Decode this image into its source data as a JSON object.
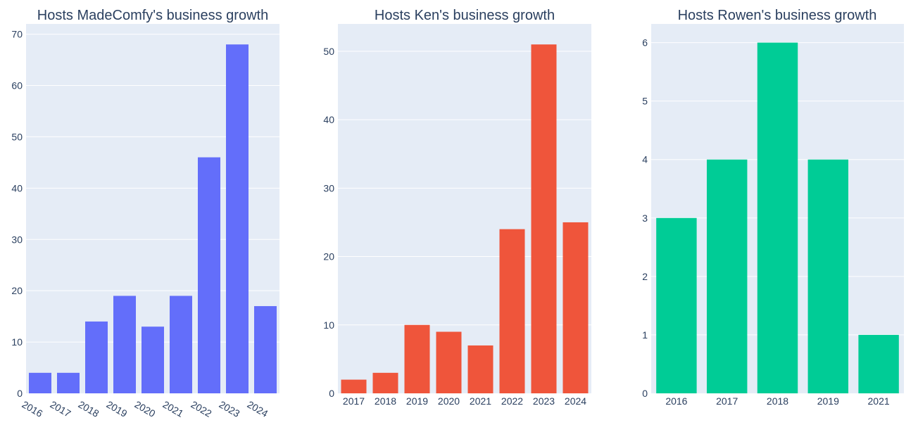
{
  "chart_data": [
    {
      "type": "bar",
      "title": "Hosts MadeComfy's business growth",
      "categories": [
        "2016",
        "2017",
        "2018",
        "2019",
        "2020",
        "2021",
        "2022",
        "2023",
        "2024"
      ],
      "values": [
        4,
        4,
        14,
        19,
        13,
        19,
        46,
        68,
        17
      ],
      "ylim": [
        0,
        72
      ],
      "yticks": [
        0,
        10,
        20,
        30,
        40,
        50,
        60,
        70
      ],
      "color": "#636efa",
      "rotate_xticks": true,
      "grid": true
    },
    {
      "type": "bar",
      "title": "Hosts Ken's business growth",
      "categories": [
        "2017",
        "2018",
        "2019",
        "2020",
        "2021",
        "2022",
        "2023",
        "2024"
      ],
      "values": [
        2,
        3,
        10,
        9,
        7,
        24,
        51,
        25
      ],
      "ylim": [
        0,
        54
      ],
      "yticks": [
        0,
        10,
        20,
        30,
        40,
        50
      ],
      "color": "#ef553b",
      "rotate_xticks": false,
      "grid": true
    },
    {
      "type": "bar",
      "title": "Hosts Rowen's business growth",
      "categories": [
        "2016",
        "2017",
        "2018",
        "2019",
        "2021"
      ],
      "values": [
        3,
        4,
        6,
        4,
        1
      ],
      "ylim": [
        0,
        6.32
      ],
      "yticks": [
        0,
        1,
        2,
        3,
        4,
        5,
        6
      ],
      "color": "#00cc96",
      "rotate_xticks": false,
      "grid": true
    }
  ],
  "style": {
    "plot_background": "#e5ecf6",
    "grid_color": "#ffffff",
    "text_color": "#2a3f5f"
  }
}
